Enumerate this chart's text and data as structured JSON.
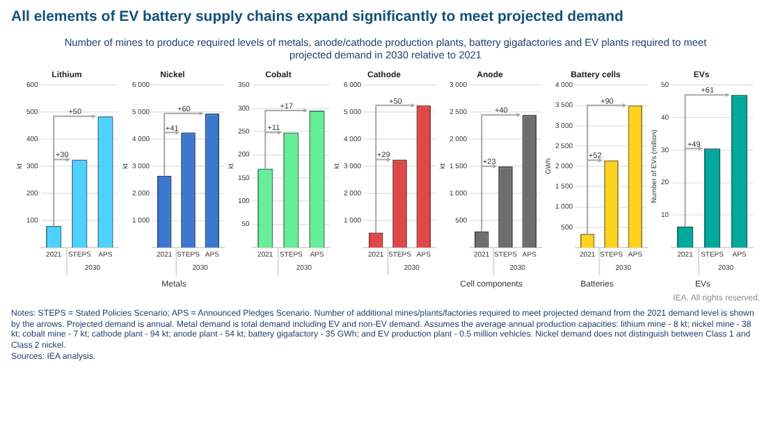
{
  "chart_data": [
    {
      "type": "other",
      "title": "All elements of EV battery supply chains expand significantly to meet projected demand",
      "subtitle": "Number of mines to produce required levels of metals, anode/cathode production plants, battery gigafactories and EV plants required to meet projected demand in 2030 relative to 2021"
    },
    {
      "type": "bar",
      "title": "Lithium",
      "ylabel": "kt",
      "categories": [
        "2021",
        "STEPS",
        "APS"
      ],
      "values": [
        80,
        325,
        485
      ],
      "color": "#4dd2ff",
      "ylim": [
        0,
        600
      ],
      "yticks": [
        100,
        200,
        300,
        400,
        500,
        600
      ],
      "grid": "y",
      "annotations": [
        "+30",
        "+50",
        "2030"
      ]
    },
    {
      "type": "bar",
      "title": "Nickel",
      "ylabel": "kt",
      "categories": [
        "2021",
        "STEPS",
        "APS"
      ],
      "values": [
        2650,
        4250,
        4950
      ],
      "color": "#3a78d0",
      "ylim": [
        0,
        6000
      ],
      "yticks": [
        {
          "value": 1000,
          "label": "1 000"
        },
        {
          "value": 2000,
          "label": "2 000"
        },
        {
          "value": 3000,
          "label": "3 000"
        },
        {
          "value": 4000,
          "label": "4 000"
        },
        {
          "value": 5000,
          "label": "5 000"
        },
        {
          "value": 6000,
          "label": "6 000"
        }
      ],
      "grid": "y",
      "annotations": [
        "+41",
        "+60",
        "2030",
        "Metals"
      ]
    },
    {
      "type": "bar",
      "title": "Cobalt",
      "ylabel": "kt",
      "categories": [
        "2021",
        "STEPS",
        "APS"
      ],
      "values": [
        170,
        248,
        295
      ],
      "color": "#66ee99",
      "ylim": [
        0,
        350
      ],
      "yticks": [
        50,
        100,
        150,
        200,
        250,
        300,
        350
      ],
      "grid": "y",
      "annotations": [
        "+11",
        "+17",
        "2030"
      ]
    },
    {
      "type": "bar",
      "title": "Cathode",
      "ylabel": "kt",
      "categories": [
        "2021",
        "STEPS",
        "APS"
      ],
      "values": [
        550,
        3250,
        5250
      ],
      "color": "#e04848",
      "ylim": [
        0,
        6000
      ],
      "yticks": [
        {
          "value": 1000,
          "label": "1 000"
        },
        {
          "value": 2000,
          "label": "2 000"
        },
        {
          "value": 3000,
          "label": "3 000"
        },
        {
          "value": 4000,
          "label": "4 000"
        },
        {
          "value": 5000,
          "label": "5 000"
        },
        {
          "value": 6000,
          "label": "6 000"
        }
      ],
      "grid": "y",
      "annotations": [
        "+29",
        "+50",
        "2030"
      ]
    },
    {
      "type": "bar",
      "title": "Anode",
      "ylabel": "kt",
      "categories": [
        "2021",
        "STEPS",
        "APS"
      ],
      "values": [
        300,
        1500,
        2450
      ],
      "color": "#6e6e6e",
      "ylim": [
        0,
        3000
      ],
      "yticks": [
        500,
        {
          "value": 1000,
          "label": "1 000"
        },
        {
          "value": 1500,
          "label": "1 500"
        },
        {
          "value": 2000,
          "label": "2 000"
        },
        {
          "value": 2500,
          "label": "2 500"
        },
        {
          "value": 3000,
          "label": "3 000"
        }
      ],
      "grid": "y",
      "annotations": [
        "+23",
        "+40",
        "2030",
        "Cell components"
      ]
    },
    {
      "type": "bar",
      "title": "Battery cells",
      "ylabel": "GWh",
      "categories": [
        "2021",
        "STEPS",
        "APS"
      ],
      "values": [
        340,
        2150,
        3500
      ],
      "color": "#ffd21f",
      "ylim": [
        0,
        4000
      ],
      "yticks": [
        500,
        {
          "value": 1000,
          "label": "1 000"
        },
        {
          "value": 1500,
          "label": "1 500"
        },
        {
          "value": 2000,
          "label": "2 000"
        },
        {
          "value": 2500,
          "label": "2 500"
        },
        {
          "value": 3000,
          "label": "3 000"
        },
        {
          "value": 3500,
          "label": "3 500"
        },
        {
          "value": 4000,
          "label": "4 000"
        }
      ],
      "grid": "y",
      "annotations": [
        "+52",
        "+90",
        "2030",
        "Batteries"
      ]
    },
    {
      "type": "bar",
      "title": "EVs",
      "ylabel": "Number of EVs (million)",
      "categories": [
        "2021",
        "STEPS",
        "APS"
      ],
      "values": [
        6.5,
        30.5,
        47
      ],
      "color": "#00a99d",
      "ylim": [
        0,
        50
      ],
      "yticks": [
        10,
        20,
        30,
        40,
        50
      ],
      "grid": "y",
      "annotations": [
        "+49",
        "+61",
        "2030",
        "EVs"
      ]
    },
    {
      "type": "other",
      "annotations": [
        "IEA. All rights reserved.",
        "Notes: STEPS = Stated Policies Scenario; APS = Announced Pledges Scenario. Number of additional mines/plants/factories required to meet projected demand from the 2021 demand level is shown by the arrows. Projected demand is annual. Metal demand is total demand including EV and non-EV demand. Assumes the average annual production capacities: lithium mine - 8 kt; nickel mine - 38 kt; cobalt mine - 7 kt; cathode plant - 94 kt; anode plant - 54 kt; battery gigafactory - 35 GWh; and EV production plant - 0.5 million vehicles. Nickel demand does not distinguish between Class 1 and Class 2 nickel.",
        "Sources: IEA analysis."
      ]
    }
  ]
}
